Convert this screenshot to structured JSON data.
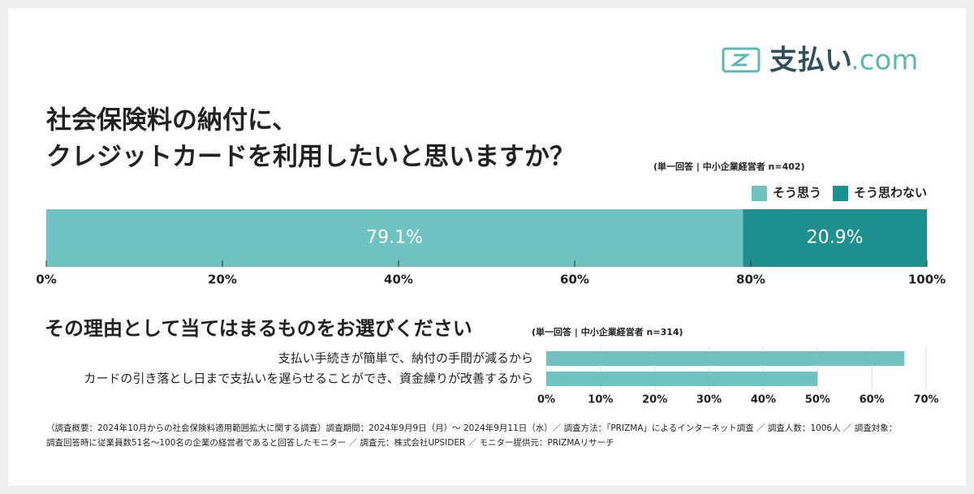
{
  "logo": {
    "name": "支払い",
    "suffix": ".com"
  },
  "chart_data": [
    {
      "type": "stacked-bar",
      "title": [
        "社会保険料の納付に、",
        "クレジットカードを利用したいと思いますか？"
      ],
      "subtitle": "(単一回答 | 中小企業経営者 n=402)",
      "series": [
        {
          "name": "そう思う",
          "color": "#6fc3c0",
          "values": [
            79.1
          ],
          "value_labels": [
            "79.1%"
          ]
        },
        {
          "name": "そう思わない",
          "color": "#1e9090",
          "values": [
            20.9
          ],
          "value_labels": [
            "20.9%"
          ]
        }
      ],
      "xlim": [
        0,
        100
      ],
      "xticks": [
        {
          "value": 0,
          "label": "0%"
        },
        {
          "value": 20,
          "label": "20%"
        },
        {
          "value": 40,
          "label": "40%"
        },
        {
          "value": 60,
          "label": "60%"
        },
        {
          "value": 80,
          "label": "80%"
        },
        {
          "value": 100,
          "label": "100%"
        }
      ],
      "legend": "top-right"
    },
    {
      "type": "bar",
      "title": [
        "その理由として当てはまるものをお選びください"
      ],
      "subtitle": "(単一回答 | 中小企業経営者 n=314)",
      "categories": [
        "支払い手続きが簡単で、納付の手間が減るから",
        "カードの引き落とし日まで支払いを遅らせることができ、資金繰りが改善するから"
      ],
      "values": [
        66,
        50
      ],
      "color": "#6fc3c0",
      "xlim": [
        0,
        70
      ],
      "xticks": [
        {
          "value": 0,
          "label": "0%"
        },
        {
          "value": 10,
          "label": "10%"
        },
        {
          "value": 20,
          "label": "20%"
        },
        {
          "value": 30,
          "label": "30%"
        },
        {
          "value": 40,
          "label": "40%"
        },
        {
          "value": 50,
          "label": "50%"
        },
        {
          "value": 60,
          "label": "60%"
        },
        {
          "value": 70,
          "label": "70%"
        }
      ],
      "grid": true
    }
  ],
  "footnote": [
    "（調査概要：2024年10月からの社会保険料適用範囲拡大に関する調査）調査期間：2024年9月9日（月）～ 2024年9月11日（水）／ 調査方法：「PRIZMA」によるインターネット調査 ／ 調査人数：1006人 ／ 調査対象：",
    "調査回答時に従業員数51名〜100名の企業の経営者であると回答したモニター ／ 調査元：株式会社UPSIDER ／ モニター提供元：PRIZMAリサーチ"
  ]
}
